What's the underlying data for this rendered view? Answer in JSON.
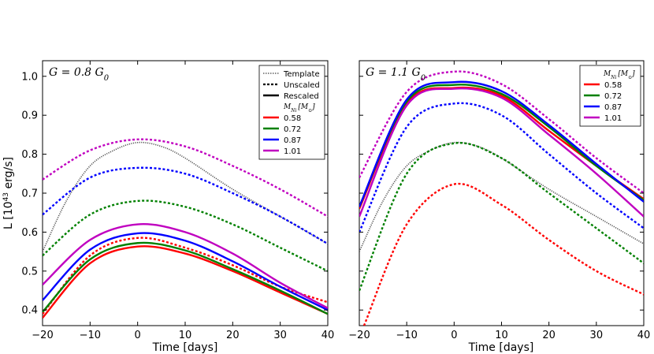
{
  "chart_data": [
    {
      "type": "line",
      "annotation": "G = 0.8 G",
      "annotation_sub": "0",
      "xlabel": "Time [days]",
      "ylabel": "L [10",
      "ylabel_sup": "43",
      "ylabel_tail": " erg/s]",
      "xlim": [
        -20,
        40
      ],
      "ylim": [
        0.36,
        1.04
      ],
      "xticks": [
        "−20",
        "−10",
        "0",
        "10",
        "20",
        "30",
        "40"
      ],
      "yticks": [
        "0.4",
        "0.5",
        "0.6",
        "0.7",
        "0.8",
        "0.9",
        "1.0"
      ],
      "legend": {
        "styles": [
          "Template",
          "Unscaled",
          "Rescaled"
        ],
        "mass_title": "M",
        "mass_title_sub": "Ni",
        "mass_title_unit": "[M",
        "mass_title_unit_sub": "⊙",
        "mass_title_close": "]",
        "masses": [
          "0.58",
          "0.72",
          "0.87",
          "1.01"
        ]
      },
      "series": [
        {
          "name": "Template",
          "style": "template",
          "color": "#555555",
          "x": [
            -20,
            -15,
            -10,
            -5,
            0,
            5,
            10,
            20,
            30,
            40
          ],
          "y": [
            0.55,
            0.68,
            0.77,
            0.81,
            0.83,
            0.82,
            0.79,
            0.71,
            0.64,
            0.57
          ]
        },
        {
          "name": "0.58 unscaled",
          "style": "unscaled",
          "color": "#ff0000",
          "x": [
            -20,
            -10,
            0,
            10,
            20,
            30,
            40
          ],
          "y": [
            0.39,
            0.54,
            0.585,
            0.56,
            0.515,
            0.46,
            0.42
          ]
        },
        {
          "name": "0.72 unscaled",
          "style": "unscaled",
          "color": "#008000",
          "x": [
            -20,
            -10,
            0,
            10,
            20,
            30,
            40
          ],
          "y": [
            0.54,
            0.645,
            0.68,
            0.665,
            0.62,
            0.56,
            0.5
          ]
        },
        {
          "name": "0.87 unscaled",
          "style": "unscaled",
          "color": "#0000ff",
          "x": [
            -20,
            -10,
            0,
            10,
            20,
            30,
            40
          ],
          "y": [
            0.645,
            0.74,
            0.765,
            0.75,
            0.7,
            0.64,
            0.57
          ]
        },
        {
          "name": "1.01 unscaled",
          "style": "unscaled",
          "color": "#c000c0",
          "x": [
            -20,
            -10,
            0,
            10,
            20,
            30,
            40
          ],
          "y": [
            0.735,
            0.81,
            0.838,
            0.82,
            0.77,
            0.71,
            0.64
          ]
        },
        {
          "name": "0.58 rescaled",
          "style": "rescaled",
          "color": "#ff0000",
          "x": [
            -20,
            -10,
            0,
            10,
            20,
            30,
            40
          ],
          "y": [
            0.38,
            0.52,
            0.563,
            0.545,
            0.5,
            0.445,
            0.39
          ]
        },
        {
          "name": "0.72 rescaled",
          "style": "rescaled",
          "color": "#008000",
          "x": [
            -20,
            -10,
            0,
            10,
            20,
            30,
            40
          ],
          "y": [
            0.395,
            0.53,
            0.572,
            0.553,
            0.505,
            0.45,
            0.39
          ]
        },
        {
          "name": "0.87 rescaled",
          "style": "rescaled",
          "color": "#0000ff",
          "x": [
            -20,
            -10,
            0,
            10,
            20,
            30,
            40
          ],
          "y": [
            0.425,
            0.555,
            0.597,
            0.578,
            0.525,
            0.46,
            0.4
          ]
        },
        {
          "name": "1.01 rescaled",
          "style": "rescaled",
          "color": "#c000c0",
          "x": [
            -20,
            -10,
            0,
            10,
            20,
            30,
            40
          ],
          "y": [
            0.465,
            0.58,
            0.62,
            0.6,
            0.545,
            0.47,
            0.405
          ]
        }
      ]
    },
    {
      "type": "line",
      "annotation": "G = 1.1 G",
      "annotation_sub": "0",
      "xlabel": "Time [days]",
      "xlim": [
        -20,
        40
      ],
      "ylim": [
        0.36,
        1.04
      ],
      "xticks": [
        "−20",
        "−10",
        "0",
        "10",
        "20",
        "30",
        "40"
      ],
      "legend": {
        "mass_title": "M",
        "mass_title_sub": "Ni",
        "mass_title_unit": "[M",
        "mass_title_unit_sub": "⊙",
        "mass_title_close": "]",
        "masses": [
          "0.58",
          "0.72",
          "0.87",
          "1.01"
        ]
      },
      "series": [
        {
          "name": "Template",
          "style": "template",
          "color": "#555555",
          "x": [
            -20,
            -15,
            -10,
            -5,
            0,
            5,
            10,
            20,
            30,
            40
          ],
          "y": [
            0.55,
            0.68,
            0.77,
            0.81,
            0.83,
            0.82,
            0.79,
            0.71,
            0.64,
            0.57
          ]
        },
        {
          "name": "0.58 unscaled",
          "style": "unscaled",
          "color": "#ff0000",
          "x": [
            -19,
            -10,
            0,
            10,
            20,
            30,
            40
          ],
          "y": [
            0.36,
            0.62,
            0.723,
            0.67,
            0.58,
            0.5,
            0.44
          ]
        },
        {
          "name": "0.72 unscaled",
          "style": "unscaled",
          "color": "#008000",
          "x": [
            -20,
            -10,
            0,
            10,
            20,
            30,
            40
          ],
          "y": [
            0.45,
            0.75,
            0.828,
            0.79,
            0.7,
            0.61,
            0.52
          ]
        },
        {
          "name": "0.87 unscaled",
          "style": "unscaled",
          "color": "#0000ff",
          "x": [
            -20,
            -10,
            0,
            10,
            20,
            30,
            40
          ],
          "y": [
            0.6,
            0.87,
            0.93,
            0.9,
            0.8,
            0.7,
            0.61
          ]
        },
        {
          "name": "1.01 unscaled",
          "style": "unscaled",
          "color": "#c000c0",
          "x": [
            -20,
            -10,
            0,
            10,
            20,
            30,
            40
          ],
          "y": [
            0.74,
            0.96,
            1.012,
            0.98,
            0.89,
            0.79,
            0.7
          ]
        },
        {
          "name": "0.58 rescaled",
          "style": "rescaled",
          "color": "#ff0000",
          "x": [
            -20,
            -10,
            0,
            10,
            20,
            30,
            40
          ],
          "y": [
            0.66,
            0.93,
            0.97,
            0.95,
            0.86,
            0.77,
            0.685
          ]
        },
        {
          "name": "0.72 rescaled",
          "style": "rescaled",
          "color": "#008000",
          "x": [
            -20,
            -10,
            0,
            10,
            20,
            30,
            40
          ],
          "y": [
            0.665,
            0.935,
            0.978,
            0.955,
            0.87,
            0.77,
            0.682
          ]
        },
        {
          "name": "0.87 rescaled",
          "style": "rescaled",
          "color": "#0000ff",
          "x": [
            -20,
            -10,
            0,
            10,
            20,
            30,
            40
          ],
          "y": [
            0.665,
            0.94,
            0.985,
            0.962,
            0.875,
            0.775,
            0.678
          ]
        },
        {
          "name": "1.01 rescaled",
          "style": "rescaled",
          "color": "#c000c0",
          "x": [
            -20,
            -10,
            0,
            10,
            20,
            30,
            40
          ],
          "y": [
            0.64,
            0.925,
            0.968,
            0.945,
            0.85,
            0.75,
            0.64
          ]
        }
      ]
    }
  ]
}
